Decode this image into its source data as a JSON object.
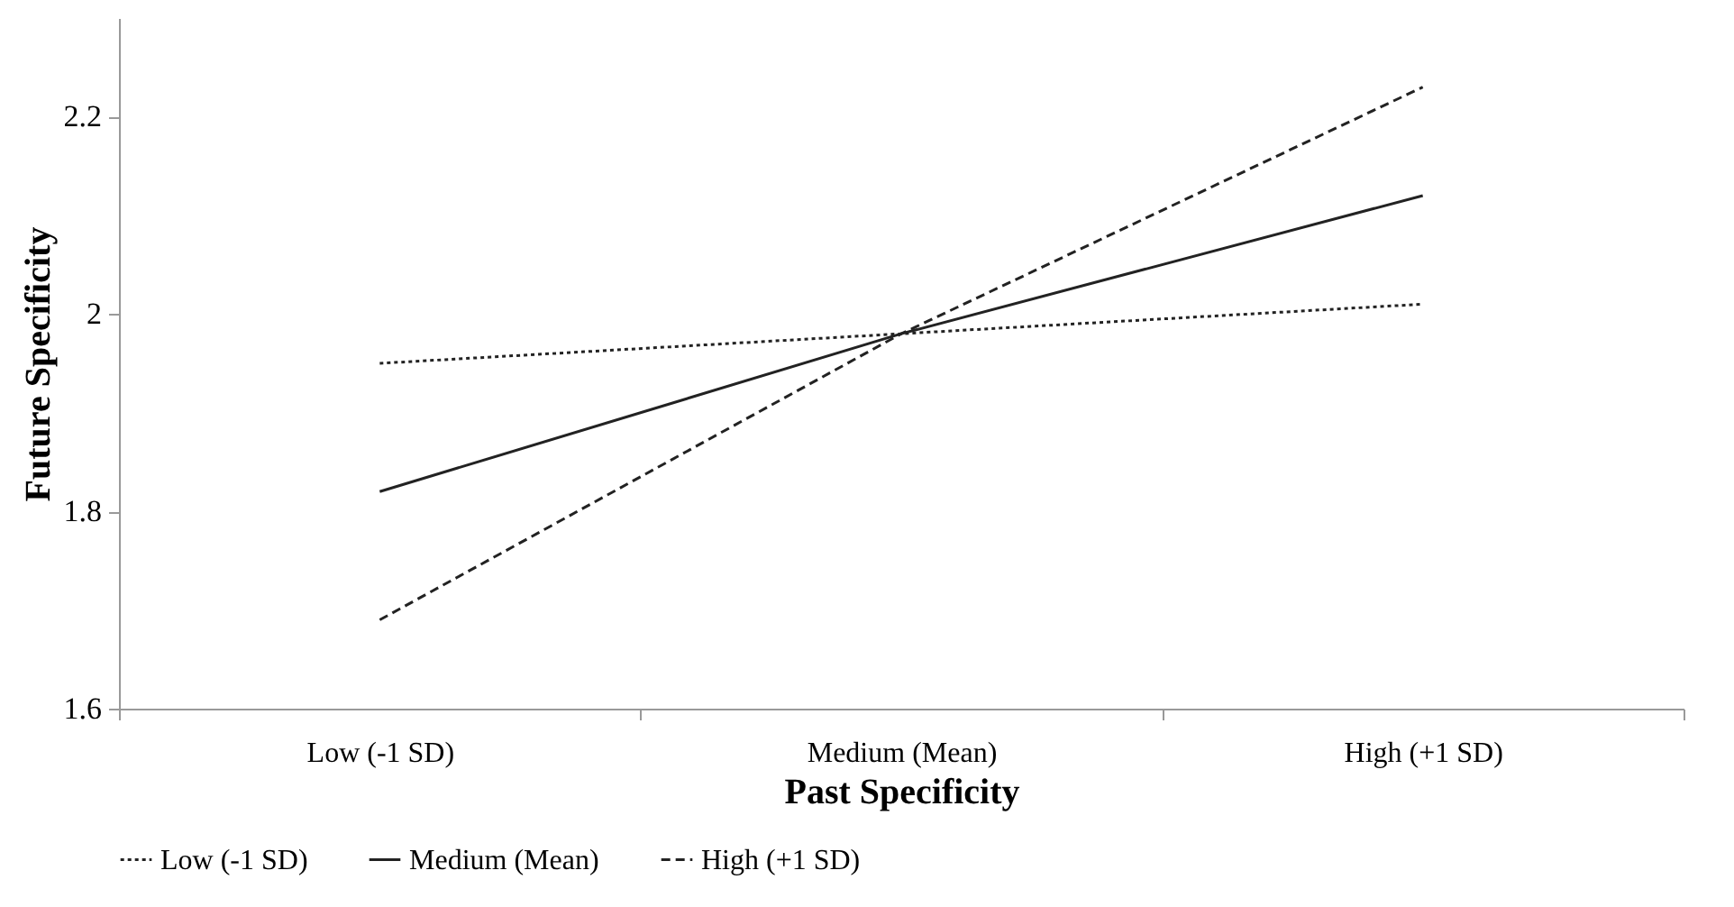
{
  "chart_data": {
    "type": "line",
    "xlabel": "Past Specificity",
    "ylabel": "Future Specificity",
    "categories": [
      "Low (-1 SD)",
      "Medium (Mean)",
      "High (+1 SD)"
    ],
    "series": [
      {
        "name": "Low (-1 SD)",
        "color": "#222222",
        "line_style": "dotted",
        "values": [
          1.95,
          1.98,
          2.01
        ]
      },
      {
        "name": "Medium (Mean)",
        "color": "#222222",
        "line_style": "solid",
        "values": [
          1.82,
          1.98,
          2.12
        ]
      },
      {
        "name": "High (+1 SD)",
        "color": "#222222",
        "line_style": "dashed",
        "values": [
          1.69,
          1.98,
          2.23
        ]
      }
    ],
    "ylim": [
      1.6,
      2.3
    ],
    "yticks": [
      1.6,
      1.8,
      2,
      2.2
    ],
    "grid": false,
    "legend": "bottom",
    "marker": "none"
  }
}
